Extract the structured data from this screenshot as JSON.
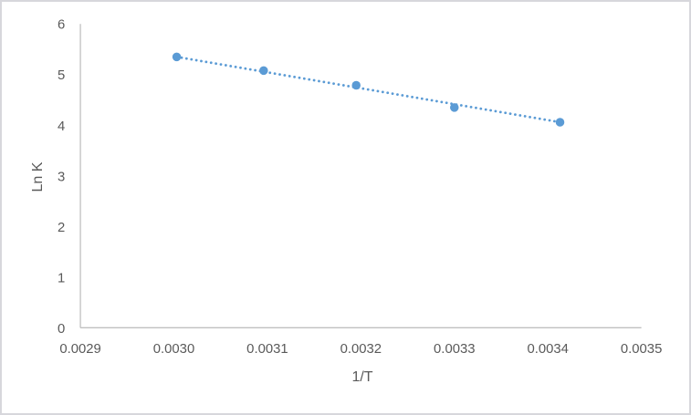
{
  "chart": {
    "background": "#FFFFFF",
    "border_color": "#D7D7DC",
    "axis_line_color": "#C0C0C0",
    "text_color": "#595959",
    "series_color": "#5B9BD5"
  },
  "chart_data": {
    "type": "scatter",
    "title": "",
    "xlabel": "1/T",
    "ylabel": "Ln K",
    "series": [
      {
        "name": "Ln K vs 1/T",
        "x": [
          0.003003,
          0.003096,
          0.003195,
          0.0033,
          0.003413
        ],
        "y": [
          5.35,
          5.08,
          4.79,
          4.35,
          4.06
        ]
      }
    ],
    "trendline": {
      "style": "dotted",
      "from": {
        "x": 0.003003,
        "y": 5.35
      },
      "to": {
        "x": 0.003413,
        "y": 4.06
      }
    },
    "xlim": [
      0.0029,
      0.0035
    ],
    "ylim": [
      0,
      6
    ],
    "x_ticks": [
      "0.0029",
      "0.0030",
      "0.0031",
      "0.0032",
      "0.0033",
      "0.0034",
      "0.0035"
    ],
    "y_ticks": [
      "0",
      "1",
      "2",
      "3",
      "4",
      "5",
      "6"
    ],
    "grid": false,
    "legend": "none"
  }
}
